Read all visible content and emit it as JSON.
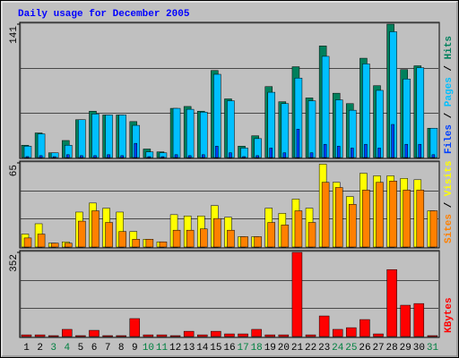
{
  "title": "Daily usage for December 2005",
  "chart_data": [
    {
      "type": "bar",
      "ylim": [
        0,
        141
      ],
      "yticks": [
        141
      ],
      "grid": true,
      "legend_separator": "/",
      "series": [
        {
          "name": "Hits",
          "color": "#00805c",
          "values": [
            13,
            26,
            5,
            18,
            40,
            49,
            45,
            45,
            38,
            9,
            6,
            52,
            54,
            49,
            92,
            62,
            12,
            23,
            75,
            59,
            96,
            63,
            118,
            68,
            57,
            105,
            76,
            141,
            93,
            97,
            31
          ]
        },
        {
          "name": "Pages",
          "color": "#00c0ff",
          "values": [
            12,
            25,
            5,
            13,
            40,
            46,
            45,
            45,
            34,
            6,
            5,
            52,
            51,
            48,
            88,
            60,
            10,
            20,
            69,
            57,
            84,
            60,
            107,
            61,
            50,
            99,
            71,
            133,
            83,
            95,
            31
          ]
        },
        {
          "name": "Files",
          "color": "#0040ff",
          "values": [
            1,
            2,
            0,
            3,
            2,
            2,
            3,
            2,
            15,
            0,
            0,
            3,
            2,
            3,
            12,
            5,
            1,
            2,
            10,
            5,
            30,
            5,
            14,
            12,
            10,
            14,
            10,
            35,
            14,
            14,
            3
          ]
        }
      ]
    },
    {
      "type": "bar",
      "ylim": [
        0,
        65
      ],
      "yticks": [
        65
      ],
      "grid": true,
      "legend_separator": "/",
      "series": [
        {
          "name": "Visits",
          "color": "#ffff00",
          "values": [
            10,
            18,
            3,
            4,
            27,
            34,
            30,
            27,
            12,
            6,
            4,
            25,
            24,
            24,
            32,
            23,
            8,
            8,
            30,
            26,
            37,
            30,
            64,
            50,
            39,
            57,
            55,
            55,
            53,
            52,
            28
          ]
        },
        {
          "name": "Sites",
          "color": "#ff8000",
          "values": [
            7,
            10,
            3,
            3,
            20,
            28,
            19,
            12,
            6,
            6,
            4,
            13,
            13,
            14,
            22,
            13,
            8,
            8,
            19,
            17,
            28,
            19,
            50,
            46,
            33,
            44,
            50,
            51,
            44,
            44,
            28
          ]
        }
      ]
    },
    {
      "type": "bar",
      "ylim": [
        0,
        352
      ],
      "yticks": [
        352
      ],
      "grid": true,
      "categories": [
        1,
        2,
        3,
        4,
        5,
        6,
        7,
        8,
        9,
        10,
        11,
        12,
        13,
        14,
        15,
        16,
        17,
        18,
        19,
        20,
        21,
        22,
        23,
        24,
        25,
        26,
        27,
        28,
        29,
        30,
        31
      ],
      "highlighted_categories": [
        3,
        4,
        10,
        11,
        17,
        18,
        24,
        25,
        31
      ],
      "category_color": "#000000",
      "highlight_color": "#008040",
      "series": [
        {
          "name": "KBytes",
          "color": "#ff0000",
          "values": [
            7,
            7,
            0,
            30,
            0,
            26,
            0,
            0,
            75,
            7,
            7,
            0,
            22,
            7,
            22,
            11,
            11,
            30,
            7,
            7,
            352,
            7,
            86,
            30,
            37,
            71,
            11,
            280,
            131,
            138,
            0
          ]
        }
      ]
    }
  ]
}
